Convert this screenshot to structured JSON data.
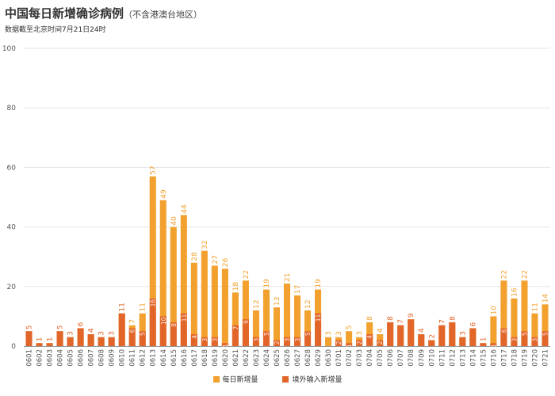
{
  "title": "中国每日新增确诊病例",
  "title_note": "（不含港澳台地区）",
  "subtitle": "数据截至北京时间7月21日24时",
  "colors": {
    "daily": "#f2a12e",
    "imported": "#e2662a",
    "grid": "#e6e6e6",
    "axis": "#999999"
  },
  "chart_data": {
    "type": "bar",
    "title": "中国每日新增确诊病例（不含港澳台地区）",
    "subtitle": "数据截至北京时间7月21日24时",
    "xlabel": "",
    "ylabel": "",
    "ylim": [
      0,
      100
    ],
    "yticks": [
      "0",
      "20",
      "40",
      "60",
      "80",
      "100"
    ],
    "grid": true,
    "legend_position": "bottom-center",
    "categories": [
      "0601",
      "0602",
      "0603",
      "0604",
      "0605",
      "0606",
      "0607",
      "0608",
      "0609",
      "0610",
      "0611",
      "0612",
      "0613",
      "0614",
      "0615",
      "0616",
      "0617",
      "0618",
      "0619",
      "0620",
      "0621",
      "0622",
      "0623",
      "0624",
      "0625",
      "0626",
      "0627",
      "0628",
      "0629",
      "0630",
      "0701",
      "0702",
      "0703",
      "0704",
      "0705",
      "0706",
      "0707",
      "0708",
      "0709",
      "0710",
      "0711",
      "0712",
      "0713",
      "0714",
      "0715",
      "0716",
      "0717",
      "0718",
      "0719",
      "0720",
      "0721"
    ],
    "series": [
      {
        "name": "每日新增量",
        "values": [
          5,
          1,
          1,
          5,
          3,
          6,
          4,
          3,
          3,
          11,
          7,
          11,
          57,
          49,
          40,
          44,
          28,
          32,
          27,
          26,
          18,
          22,
          12,
          19,
          13,
          21,
          17,
          12,
          19,
          3,
          3,
          5,
          3,
          8,
          4,
          8,
          7,
          9,
          4,
          2,
          7,
          8,
          3,
          6,
          1,
          10,
          22,
          16,
          22,
          11,
          14
        ]
      },
      {
        "name": "境外输入新增量",
        "values": [
          5,
          1,
          1,
          5,
          3,
          6,
          4,
          3,
          3,
          11,
          6,
          5,
          16,
          10,
          8,
          11,
          4,
          3,
          3,
          1,
          7,
          9,
          3,
          5,
          2,
          3,
          3,
          5,
          11,
          0,
          2,
          1,
          2,
          4,
          2,
          8,
          7,
          9,
          4,
          2,
          7,
          8,
          3,
          6,
          1,
          1,
          6,
          3,
          5,
          3,
          5
        ]
      }
    ],
    "data_labels": [
      "5",
      "1",
      "1",
      "5",
      "3",
      "6",
      "4",
      "3",
      "3",
      "11",
      "7",
      "11",
      "57",
      "49",
      "40",
      "44",
      "28",
      "32",
      "27",
      "26",
      "18",
      "22",
      "12",
      "19",
      "13",
      "21",
      "17",
      "12",
      "19",
      "3",
      "3",
      "5",
      "3",
      "8",
      "4",
      "8",
      "7",
      "9",
      "4",
      "2",
      "7",
      "8",
      "3",
      "6",
      "1",
      "10",
      "22",
      "16",
      "22",
      "11",
      "14"
    ],
    "imported_labels": [
      "",
      "",
      "",
      "",
      "",
      "",
      "",
      "",
      "",
      "",
      "6",
      "5",
      "16",
      "10",
      "8",
      "11",
      "4",
      "3",
      "3",
      "1",
      "7",
      "9",
      "3",
      "5",
      "2",
      "3",
      "3",
      "5",
      "11",
      "",
      "2",
      "1",
      "2",
      "4",
      "2",
      "",
      "",
      "",
      "",
      "",
      "",
      "",
      "",
      "",
      "",
      "1",
      "6",
      "3",
      "5",
      "3",
      "5"
    ]
  }
}
